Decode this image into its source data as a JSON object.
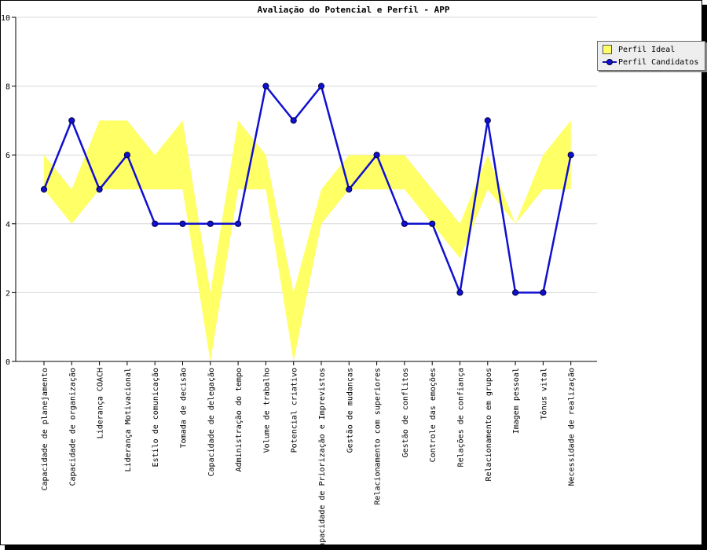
{
  "chart_data": {
    "type": "line",
    "title": "Avaliação do Potencial e Perfil - APP",
    "categories": [
      "Capacidade de planejamento",
      "Capacidade de organização",
      "Liderança COACH",
      "Liderança Motivacional",
      "Estilo de comunicação",
      "Tomada de decisão",
      "Capacidade de delegação",
      "Administração do tempo",
      "Volume de trabalho",
      "Potencial criativo",
      "Capacidade de Priorização e Imprevistos",
      "Gestão de mudanças",
      "Relacionamento com superiores",
      "Gestão de conflitos",
      "Controle das emoções",
      "Relações de confiança",
      "Relacionamento em grupos",
      "Imagem pessoal",
      "Tônus vital",
      "Necessidade de realização"
    ],
    "ylim": [
      0,
      10
    ],
    "yticks": [
      0,
      2,
      4,
      6,
      8,
      10
    ],
    "grid": true,
    "legend_position": "top-right",
    "series": [
      {
        "name": "Perfil Ideal",
        "type": "band",
        "color": "#ffff66",
        "low": [
          5,
          4,
          5,
          5,
          5,
          5,
          0,
          5,
          5,
          0,
          4,
          5,
          5,
          5,
          4,
          3,
          5,
          4,
          5,
          5
        ],
        "high": [
          6,
          5,
          7,
          7,
          6,
          7,
          2,
          7,
          6,
          2,
          5,
          6,
          6,
          6,
          5,
          4,
          6,
          4,
          6,
          7
        ]
      },
      {
        "name": "Perfil Candidatos",
        "type": "line",
        "color": "#1010d0",
        "values": [
          5,
          7,
          5,
          6,
          4,
          4,
          4,
          4,
          8,
          7,
          8,
          5,
          6,
          4,
          4,
          2,
          7,
          2,
          2,
          6
        ]
      }
    ]
  }
}
